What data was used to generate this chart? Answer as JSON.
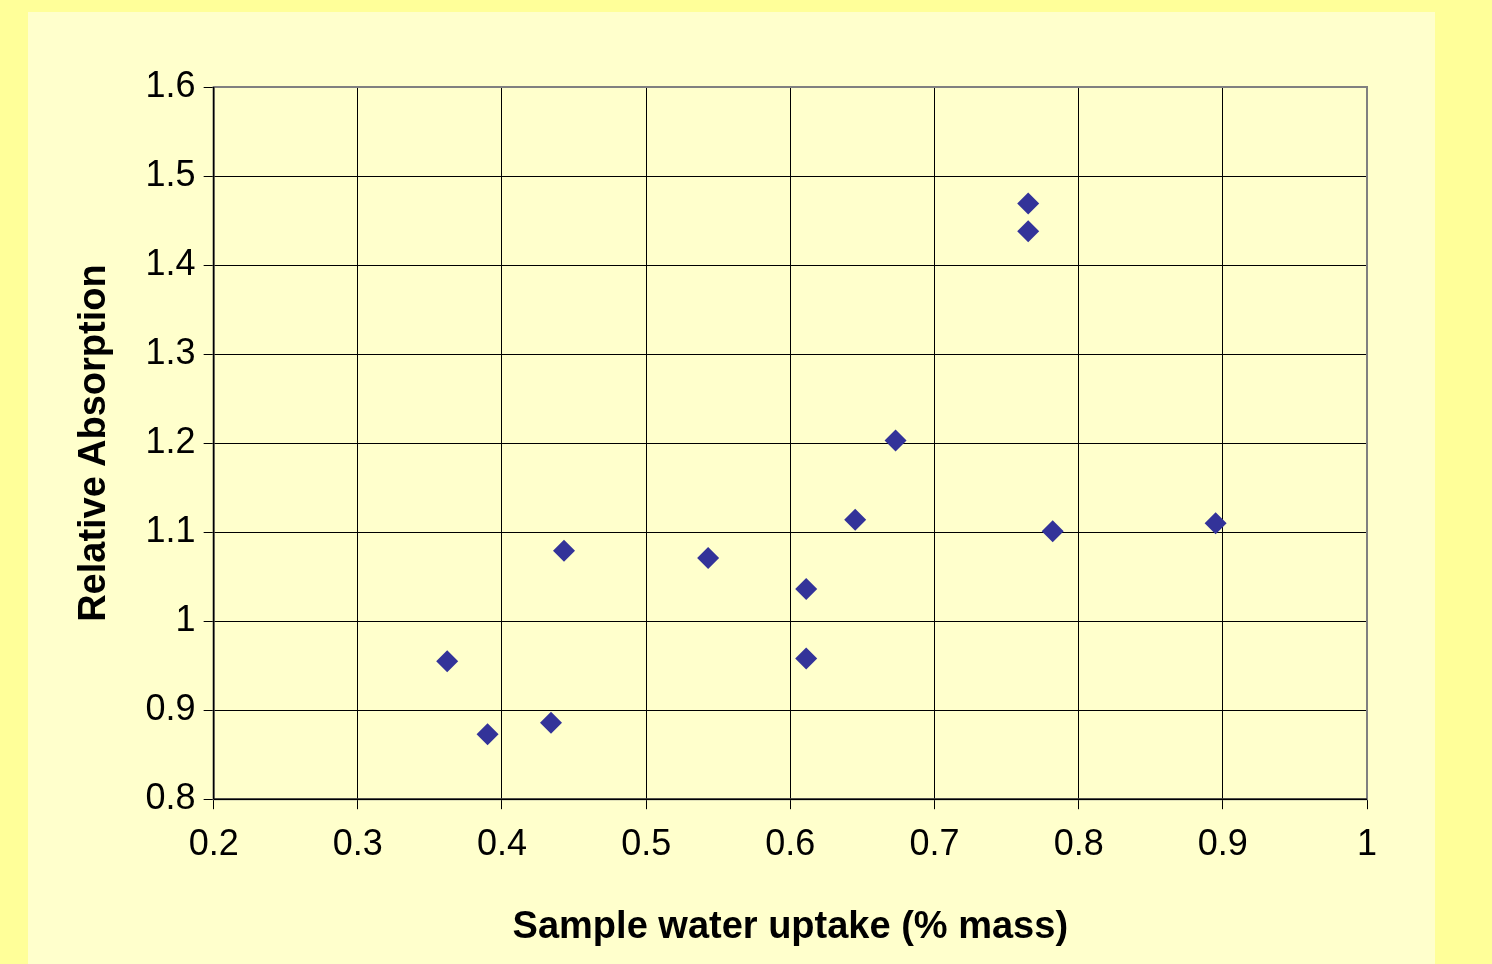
{
  "chart_data": {
    "type": "scatter",
    "xlabel": "Sample water uptake (% mass)",
    "ylabel": "Relative Absorption",
    "x": [
      0.362,
      0.39,
      0.434,
      0.443,
      0.543,
      0.611,
      0.611,
      0.645,
      0.673,
      0.765,
      0.765,
      0.782,
      0.895
    ],
    "series": [
      {
        "color": "#333399",
        "values": [
          0.955,
          0.873,
          0.886,
          1.079,
          1.071,
          1.036,
          0.958,
          1.114,
          1.203,
          1.469,
          1.438,
          1.101,
          1.11
        ]
      }
    ],
    "xlim": [
      0.2,
      1
    ],
    "xticks": [
      0.2,
      0.3,
      0.4,
      0.5,
      0.6,
      0.7,
      0.8,
      0.9,
      1
    ],
    "ylim": [
      0.8,
      1.6
    ],
    "yticks": [
      0.8,
      0.9,
      1,
      1.1,
      1.2,
      1.3,
      1.4,
      1.5,
      1.6
    ],
    "grid": true,
    "marker": "diamond",
    "legend": false
  }
}
